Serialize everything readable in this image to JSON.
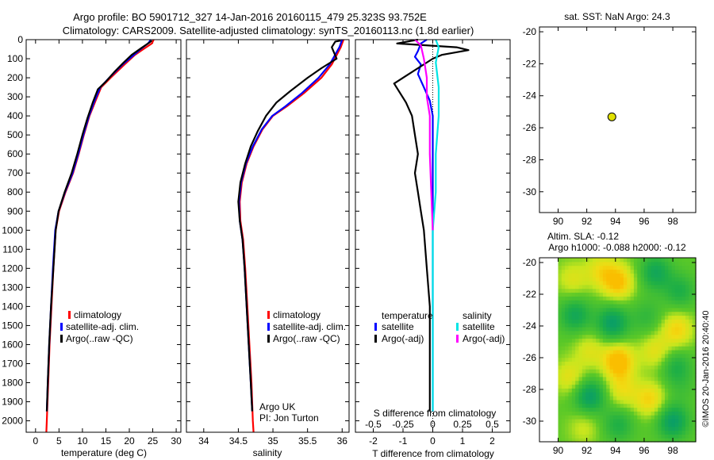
{
  "header": {
    "line1": "Argo profile: BO 5901712_327 14-Jan-2016 20160115_479 25.323S 93.752E",
    "line2": "Climatology: CARS2009. Satellite-adjusted climatology: synTS_20160113.nc (1.8d earlier)"
  },
  "colors": {
    "climatology": "#ff0000",
    "satellite": "#0000ff",
    "argo": "#000000",
    "sal_satellite": "#00e5e5",
    "sal_argo": "#ff00ff",
    "marker": "#e0e000"
  },
  "credits": {
    "argo_uk": "Argo UK",
    "pi": "PI: Jon Turton",
    "imos": "©IMOS 20-Jan-2016 20:40:40"
  },
  "chart_data": [
    {
      "id": "temperature",
      "type": "line",
      "xlabel": "temperature (deg C)",
      "ylabel": "",
      "xlim": [
        -2,
        31
      ],
      "ylim": [
        2060,
        0
      ],
      "xticks": [
        0,
        5,
        10,
        15,
        20,
        25,
        30
      ],
      "yticks": [
        0,
        100,
        200,
        300,
        400,
        500,
        600,
        700,
        800,
        900,
        1000,
        1100,
        1200,
        1300,
        1400,
        1500,
        1600,
        1700,
        1800,
        1900,
        2000
      ],
      "legend": [
        "climatology",
        "satellite-adj. clim.",
        "Argo(..raw -QC)"
      ],
      "series": [
        {
          "name": "climatology",
          "color": "#ff0000",
          "points": [
            [
              25.2,
              0
            ],
            [
              24.8,
              20
            ],
            [
              23.0,
              50
            ],
            [
              21.2,
              80
            ],
            [
              19.0,
              130
            ],
            [
              16.0,
              200
            ],
            [
              14.0,
              250
            ],
            [
              12.8,
              320
            ],
            [
              11.5,
              400
            ],
            [
              10.3,
              500
            ],
            [
              9.2,
              600
            ],
            [
              8.0,
              700
            ],
            [
              6.4,
              800
            ],
            [
              5.0,
              900
            ],
            [
              4.3,
              1000
            ],
            [
              3.8,
              1200
            ],
            [
              3.4,
              1400
            ],
            [
              3.0,
              1600
            ],
            [
              2.7,
              1800
            ],
            [
              2.4,
              2000
            ],
            [
              2.3,
              2060
            ]
          ]
        },
        {
          "name": "satellite-adj. clim.",
          "color": "#0000ff",
          "points": [
            [
              24.6,
              0
            ],
            [
              24.0,
              20
            ],
            [
              22.4,
              50
            ],
            [
              21.0,
              80
            ],
            [
              18.6,
              130
            ],
            [
              15.7,
              200
            ],
            [
              13.8,
              250
            ],
            [
              12.6,
              320
            ],
            [
              11.4,
              400
            ],
            [
              10.2,
              500
            ],
            [
              9.1,
              600
            ],
            [
              7.9,
              700
            ],
            [
              6.3,
              800
            ],
            [
              4.9,
              900
            ],
            [
              4.2,
              1000
            ],
            [
              3.7,
              1200
            ],
            [
              3.3,
              1400
            ],
            [
              2.9,
              1600
            ],
            [
              2.6,
              1800
            ],
            [
              2.4,
              1950
            ]
          ]
        },
        {
          "name": "Argo(..raw -QC)",
          "color": "#000000",
          "points": [
            [
              24.8,
              5
            ],
            [
              24.3,
              15
            ],
            [
              22.5,
              45
            ],
            [
              20.5,
              80
            ],
            [
              18.8,
              120
            ],
            [
              16.8,
              170
            ],
            [
              15.0,
              220
            ],
            [
              13.3,
              260
            ],
            [
              12.2,
              330
            ],
            [
              11.1,
              410
            ],
            [
              10.0,
              500
            ],
            [
              8.9,
              600
            ],
            [
              7.7,
              700
            ],
            [
              6.2,
              800
            ],
            [
              4.9,
              900
            ],
            [
              4.3,
              1000
            ],
            [
              3.8,
              1200
            ],
            [
              3.3,
              1400
            ],
            [
              2.9,
              1600
            ],
            [
              2.6,
              1800
            ],
            [
              2.4,
              1950
            ]
          ]
        }
      ]
    },
    {
      "id": "salinity",
      "type": "line",
      "xlabel": "salinity",
      "ylabel": "",
      "xlim": [
        33.75,
        36.1
      ],
      "ylim": [
        2060,
        0
      ],
      "xticks": [
        34,
        34.5,
        35,
        35.5,
        36
      ],
      "yticks": [
        0,
        100,
        200,
        300,
        400,
        500,
        600,
        700,
        800,
        900,
        1000,
        1100,
        1200,
        1300,
        1400,
        1500,
        1600,
        1700,
        1800,
        1900,
        2000
      ],
      "legend": [
        "climatology",
        "satellite-adj. clim.",
        "Argo(..raw -QC)"
      ],
      "series": [
        {
          "name": "climatology",
          "color": "#ff0000",
          "points": [
            [
              36.02,
              0
            ],
            [
              35.98,
              40
            ],
            [
              35.85,
              130
            ],
            [
              35.7,
              200
            ],
            [
              35.45,
              280
            ],
            [
              35.2,
              350
            ],
            [
              35.0,
              400
            ],
            [
              34.85,
              470
            ],
            [
              34.72,
              560
            ],
            [
              34.62,
              650
            ],
            [
              34.55,
              750
            ],
            [
              34.52,
              850
            ],
            [
              34.53,
              950
            ],
            [
              34.57,
              1050
            ],
            [
              34.6,
              1200
            ],
            [
              34.63,
              1400
            ],
            [
              34.66,
              1600
            ],
            [
              34.69,
              1800
            ],
            [
              34.71,
              2000
            ],
            [
              34.72,
              2060
            ]
          ]
        },
        {
          "name": "satellite-adj. clim.",
          "color": "#0000ff",
          "points": [
            [
              36.0,
              0
            ],
            [
              35.96,
              40
            ],
            [
              35.82,
              130
            ],
            [
              35.66,
              200
            ],
            [
              35.42,
              280
            ],
            [
              35.18,
              350
            ],
            [
              34.99,
              400
            ],
            [
              34.84,
              470
            ],
            [
              34.71,
              560
            ],
            [
              34.61,
              650
            ],
            [
              34.54,
              750
            ],
            [
              34.51,
              850
            ],
            [
              34.52,
              950
            ],
            [
              34.56,
              1050
            ],
            [
              34.59,
              1200
            ],
            [
              34.62,
              1400
            ],
            [
              34.65,
              1600
            ],
            [
              34.68,
              1800
            ],
            [
              34.7,
              1950
            ]
          ]
        },
        {
          "name": "Argo(..raw -QC)",
          "color": "#000000",
          "points": [
            [
              35.98,
              5
            ],
            [
              35.9,
              10
            ],
            [
              35.85,
              40
            ],
            [
              35.92,
              100
            ],
            [
              35.7,
              150
            ],
            [
              35.5,
              200
            ],
            [
              35.25,
              270
            ],
            [
              35.05,
              330
            ],
            [
              34.9,
              400
            ],
            [
              34.78,
              480
            ],
            [
              34.68,
              560
            ],
            [
              34.6,
              650
            ],
            [
              34.53,
              750
            ],
            [
              34.5,
              850
            ],
            [
              34.52,
              950
            ],
            [
              34.56,
              1050
            ],
            [
              34.59,
              1200
            ],
            [
              34.62,
              1400
            ],
            [
              34.65,
              1600
            ],
            [
              34.68,
              1800
            ],
            [
              34.7,
              1950
            ]
          ]
        }
      ]
    },
    {
      "id": "difference",
      "type": "line",
      "xlabel": "T difference from climatology",
      "top_xlabel": "S difference from climatology",
      "xlim": [
        -2.6,
        2.6
      ],
      "ylim": [
        2060,
        0
      ],
      "xticks": [
        -2,
        -1,
        0,
        1,
        2
      ],
      "top_ticks": [
        {
          "label": "-0.5",
          "t": -2
        },
        {
          "label": "-0.25",
          "t": -1
        },
        {
          "label": "0",
          "t": 0
        },
        {
          "label": "0.25",
          "t": 1
        },
        {
          "label": "0.5",
          "t": 2
        }
      ],
      "yticks": [
        0,
        100,
        200,
        300,
        400,
        500,
        600,
        700,
        800,
        900,
        1000,
        1100,
        1200,
        1300,
        1400,
        1500,
        1600,
        1700,
        1800,
        1900,
        2000
      ],
      "legend_headers": [
        "temperature",
        "salinity"
      ],
      "legend_left": [
        "satellite",
        "Argo(-adj)"
      ],
      "legend_right": [
        "satellite",
        "Argo(-adj)"
      ],
      "series": [
        {
          "name": "temperature satellite",
          "color": "#0000ff",
          "points": [
            [
              -0.2,
              0
            ],
            [
              -0.4,
              20
            ],
            [
              -0.5,
              60
            ],
            [
              -0.6,
              90
            ],
            [
              -0.4,
              130
            ],
            [
              -0.5,
              180
            ],
            [
              -0.3,
              250
            ],
            [
              -0.1,
              320
            ],
            [
              0.0,
              400
            ],
            [
              0.0,
              600
            ],
            [
              0.0,
              800
            ],
            [
              0.0,
              1000
            ],
            [
              0.0,
              1500
            ],
            [
              0.0,
              1950
            ]
          ]
        },
        {
          "name": "temperature Argo(-adj)",
          "color": "#000000",
          "points": [
            [
              -0.5,
              0
            ],
            [
              -1.2,
              20
            ],
            [
              0.8,
              40
            ],
            [
              1.2,
              55
            ],
            [
              0.3,
              80
            ],
            [
              0.0,
              100
            ],
            [
              -1.3,
              230
            ],
            [
              -1.1,
              280
            ],
            [
              -0.9,
              330
            ],
            [
              -0.7,
              400
            ],
            [
              -0.6,
              500
            ],
            [
              -0.5,
              600
            ],
            [
              -0.6,
              700
            ],
            [
              -0.5,
              800
            ],
            [
              -0.4,
              900
            ],
            [
              -0.3,
              1000
            ],
            [
              -0.2,
              1200
            ],
            [
              -0.1,
              1400
            ],
            [
              -0.1,
              1600
            ],
            [
              -0.1,
              1800
            ],
            [
              -0.1,
              1950
            ]
          ]
        },
        {
          "name": "salinity satellite",
          "color": "#00e5e5",
          "points": [
            [
              0.1,
              0
            ],
            [
              0.2,
              40
            ],
            [
              0.1,
              120
            ],
            [
              0.2,
              250
            ],
            [
              0.2,
              400
            ],
            [
              0.1,
              600
            ],
            [
              0.1,
              800
            ],
            [
              0.0,
              1000
            ],
            [
              0.0,
              1500
            ],
            [
              0.0,
              1950
            ]
          ]
        },
        {
          "name": "salinity Argo(-adj)",
          "color": "#ff00ff",
          "points": [
            [
              -0.6,
              0
            ],
            [
              -0.4,
              30
            ],
            [
              -0.3,
              100
            ],
            [
              -0.2,
              200
            ],
            [
              -0.2,
              300
            ],
            [
              -0.1,
              400
            ],
            [
              -0.1,
              600
            ],
            [
              -0.05,
              800
            ],
            [
              0.0,
              1000
            ]
          ]
        }
      ]
    },
    {
      "id": "sst-map",
      "type": "scatter",
      "title": "sat. SST: NaN Argo: 24.3",
      "xlim": [
        88.7,
        99.6
      ],
      "ylim": [
        -31.3,
        -19.7
      ],
      "xticks": [
        90,
        92,
        94,
        96,
        98
      ],
      "yticks": [
        -20,
        -22,
        -24,
        -26,
        -28,
        -30
      ],
      "points": [
        {
          "x": 93.75,
          "y": -25.32
        }
      ]
    },
    {
      "id": "sla-map",
      "type": "heatmap",
      "title_line1": "Altim. SLA: -0.12",
      "title_line2": "Argo h1000: -0.088 h2000: -0.12",
      "xlim": [
        88.7,
        99.6
      ],
      "ylim": [
        -31.3,
        -19.7
      ],
      "data_xlim": [
        90,
        99.6
      ],
      "xticks": [
        90,
        92,
        94,
        96,
        98
      ],
      "yticks": [
        -20,
        -22,
        -24,
        -26,
        -28,
        -30
      ],
      "anomalies": [
        {
          "x": 91.0,
          "y": -21.0,
          "v": 0.5
        },
        {
          "x": 93.0,
          "y": -20.5,
          "v": 0.6
        },
        {
          "x": 94.2,
          "y": -21.2,
          "v": 1.0
        },
        {
          "x": 96.8,
          "y": -20.6,
          "v": -0.8
        },
        {
          "x": 98.5,
          "y": -21.8,
          "v": -0.6
        },
        {
          "x": 91.2,
          "y": -23.3,
          "v": -0.8
        },
        {
          "x": 93.8,
          "y": -23.8,
          "v": -1.0
        },
        {
          "x": 96.2,
          "y": -23.4,
          "v": -0.4
        },
        {
          "x": 98.3,
          "y": -24.2,
          "v": 0.8
        },
        {
          "x": 92.2,
          "y": -25.5,
          "v": 0.5
        },
        {
          "x": 94.2,
          "y": -26.2,
          "v": 1.2
        },
        {
          "x": 96.8,
          "y": -25.6,
          "v": 0.6
        },
        {
          "x": 98.2,
          "y": -26.5,
          "v": -0.6
        },
        {
          "x": 90.8,
          "y": -27.2,
          "v": 0.6
        },
        {
          "x": 92.2,
          "y": -28.4,
          "v": -1.0
        },
        {
          "x": 94.5,
          "y": -28.0,
          "v": 0.6
        },
        {
          "x": 96.4,
          "y": -28.6,
          "v": 0.8
        },
        {
          "x": 98.6,
          "y": -27.8,
          "v": -0.2
        },
        {
          "x": 91.8,
          "y": -30.4,
          "v": 0.4
        },
        {
          "x": 94.2,
          "y": -30.2,
          "v": -0.6
        },
        {
          "x": 98.0,
          "y": -30.0,
          "v": -1.0
        }
      ]
    }
  ]
}
